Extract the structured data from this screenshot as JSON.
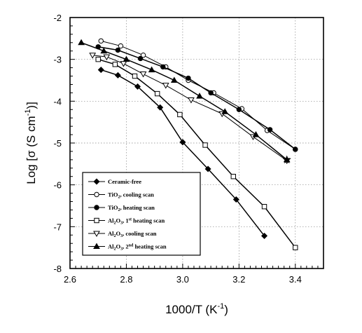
{
  "chart_data": {
    "type": "line",
    "xlabel": "1000/T  (K-1)",
    "xlabel_base": "1000/T  (K",
    "xlabel_sup": "-1",
    "xlabel_end": ")",
    "ylabel_base": "Log [σ (S cm",
    "ylabel_sup": "-1",
    "ylabel_end": ")]",
    "xlim": [
      2.6,
      3.5
    ],
    "ylim": [
      -8,
      -2
    ],
    "xticks": [
      "2.6",
      "2.8",
      "3.0",
      "3.2",
      "3.4"
    ],
    "yticks": [
      "-2",
      "-3",
      "-4",
      "-5",
      "-6",
      "-7",
      "-8"
    ],
    "grid": true,
    "legend_position": "bottom-left",
    "series": [
      {
        "name": "Ceramic-free",
        "marker": "diamond-filled",
        "x": [
          2.71,
          2.77,
          2.84,
          2.92,
          3.0,
          3.09,
          3.19,
          3.29
        ],
        "y": [
          -3.25,
          -3.38,
          -3.65,
          -4.15,
          -4.98,
          -5.62,
          -6.35,
          -7.22
        ]
      },
      {
        "name": "TiO2, cooling scan",
        "name_base": "TiO",
        "name_sub": "2",
        "name_rest": ", cooling scan",
        "marker": "circle-open",
        "x": [
          2.71,
          2.78,
          2.86,
          2.94,
          3.02,
          3.11,
          3.21,
          3.3,
          3.4
        ],
        "y": [
          -2.56,
          -2.68,
          -2.9,
          -3.18,
          -3.5,
          -3.8,
          -4.18,
          -4.7,
          -5.15
        ]
      },
      {
        "name": "TiO2, heating scan",
        "name_base": "TiO",
        "name_sub": "2",
        "name_rest": ", heating scan",
        "marker": "circle-filled",
        "x": [
          2.7,
          2.77,
          2.85,
          2.93,
          3.02,
          3.1,
          3.2,
          3.31,
          3.4
        ],
        "y": [
          -2.7,
          -2.78,
          -2.98,
          -3.18,
          -3.45,
          -3.8,
          -4.2,
          -4.68,
          -5.15
        ]
      },
      {
        "name": "Al2O3, 1st heating scan",
        "name_base": "Al",
        "name_sub": "2",
        "name_mid": "O",
        "name_sub2": "3",
        "name_rest": ", 1",
        "name_sup": "st",
        "name_tail": " heating scan",
        "marker": "square-open",
        "x": [
          2.7,
          2.76,
          2.83,
          2.91,
          2.99,
          3.08,
          3.18,
          3.29,
          3.4
        ],
        "y": [
          -3.0,
          -3.12,
          -3.4,
          -3.82,
          -4.32,
          -5.05,
          -5.8,
          -6.52,
          -7.5
        ]
      },
      {
        "name": "Al2O3, cooling scan",
        "name_base": "Al",
        "name_sub": "2",
        "name_mid": "O",
        "name_sub2": "3",
        "name_rest": ", cooling scan",
        "marker": "triangle-down-open",
        "x": [
          2.68,
          2.73,
          2.79,
          2.86,
          2.94,
          3.03,
          3.14,
          3.25,
          3.37
        ],
        "y": [
          -2.9,
          -2.94,
          -3.1,
          -3.35,
          -3.62,
          -3.97,
          -4.3,
          -4.85,
          -5.42
        ]
      },
      {
        "name": "Al2O3, 2nd heating scan",
        "name_base": "Al",
        "name_sub": "2",
        "name_mid": "O",
        "name_sub2": "3",
        "name_rest": ", 2",
        "name_sup": "nd",
        "name_tail": " heating scan",
        "marker": "triangle-up-filled",
        "x": [
          2.64,
          2.72,
          2.8,
          2.89,
          2.97,
          3.06,
          3.15,
          3.26,
          3.37
        ],
        "y": [
          -2.6,
          -2.8,
          -3.0,
          -3.25,
          -3.5,
          -3.88,
          -4.25,
          -4.8,
          -5.4
        ]
      }
    ]
  }
}
